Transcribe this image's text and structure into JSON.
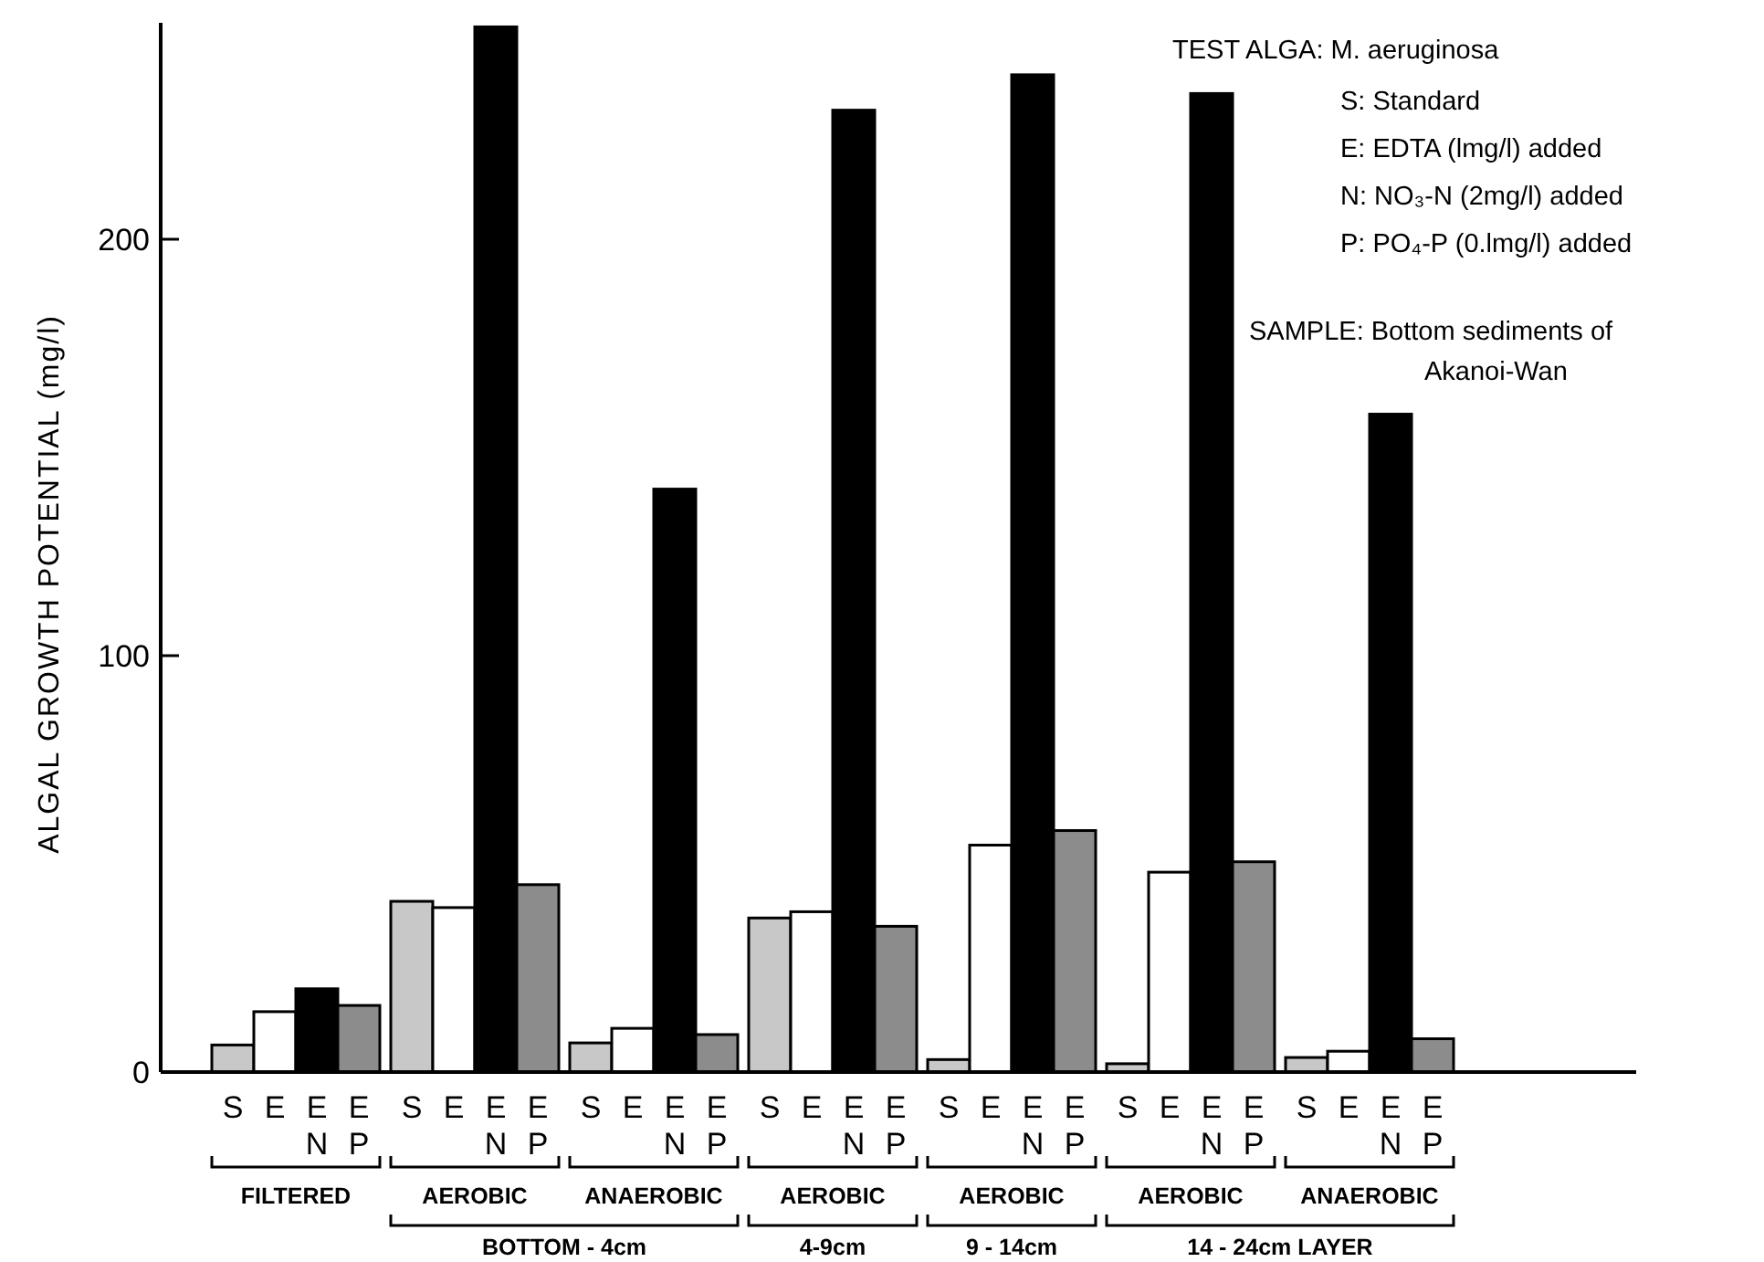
{
  "chart_data": {
    "type": "bar",
    "ylabel": "ALGAL GROWTH POTENTIAL  (mg/l)",
    "categories": [
      "FILTERED",
      "AEROBIC",
      "ANAEROBIC",
      "AEROBIC",
      "AEROBIC",
      "AEROBIC",
      "ANAEROBIC"
    ],
    "series": [
      {
        "name": "S",
        "color": "#c8c8c8",
        "values": [
          6.5,
          41,
          7,
          37,
          3,
          2,
          3.5
        ]
      },
      {
        "name": "E",
        "color": "#ffffff",
        "values": [
          14.5,
          39.5,
          10.5,
          38.5,
          54.5,
          48,
          5
        ]
      },
      {
        "name": "EN",
        "color": "#000000",
        "values": [
          20,
          251,
          140,
          231,
          239.5,
          235,
          158
        ]
      },
      {
        "name": "EP",
        "color": "#8c8c8c",
        "values": [
          16,
          45,
          9,
          35,
          58,
          50.5,
          8
        ]
      }
    ],
    "ylim": [
      0,
      252
    ],
    "yticks": [
      0,
      100,
      200
    ],
    "grid": false,
    "annotations": [
      "TEST ALGA: M. aeruginosa",
      "S: Standard",
      "E: EDTA (lmg/l) added",
      "N: NO₃-N (2mg/l) added",
      "P: PO₄-P (0.lmg/l) added",
      "SAMPLE: Bottom sediments of",
      "Akanoi-Wan",
      "BOTTOM -  4cm",
      "4-9cm",
      "9 - 14cm",
      "14 - 24cm LAYER"
    ]
  }
}
